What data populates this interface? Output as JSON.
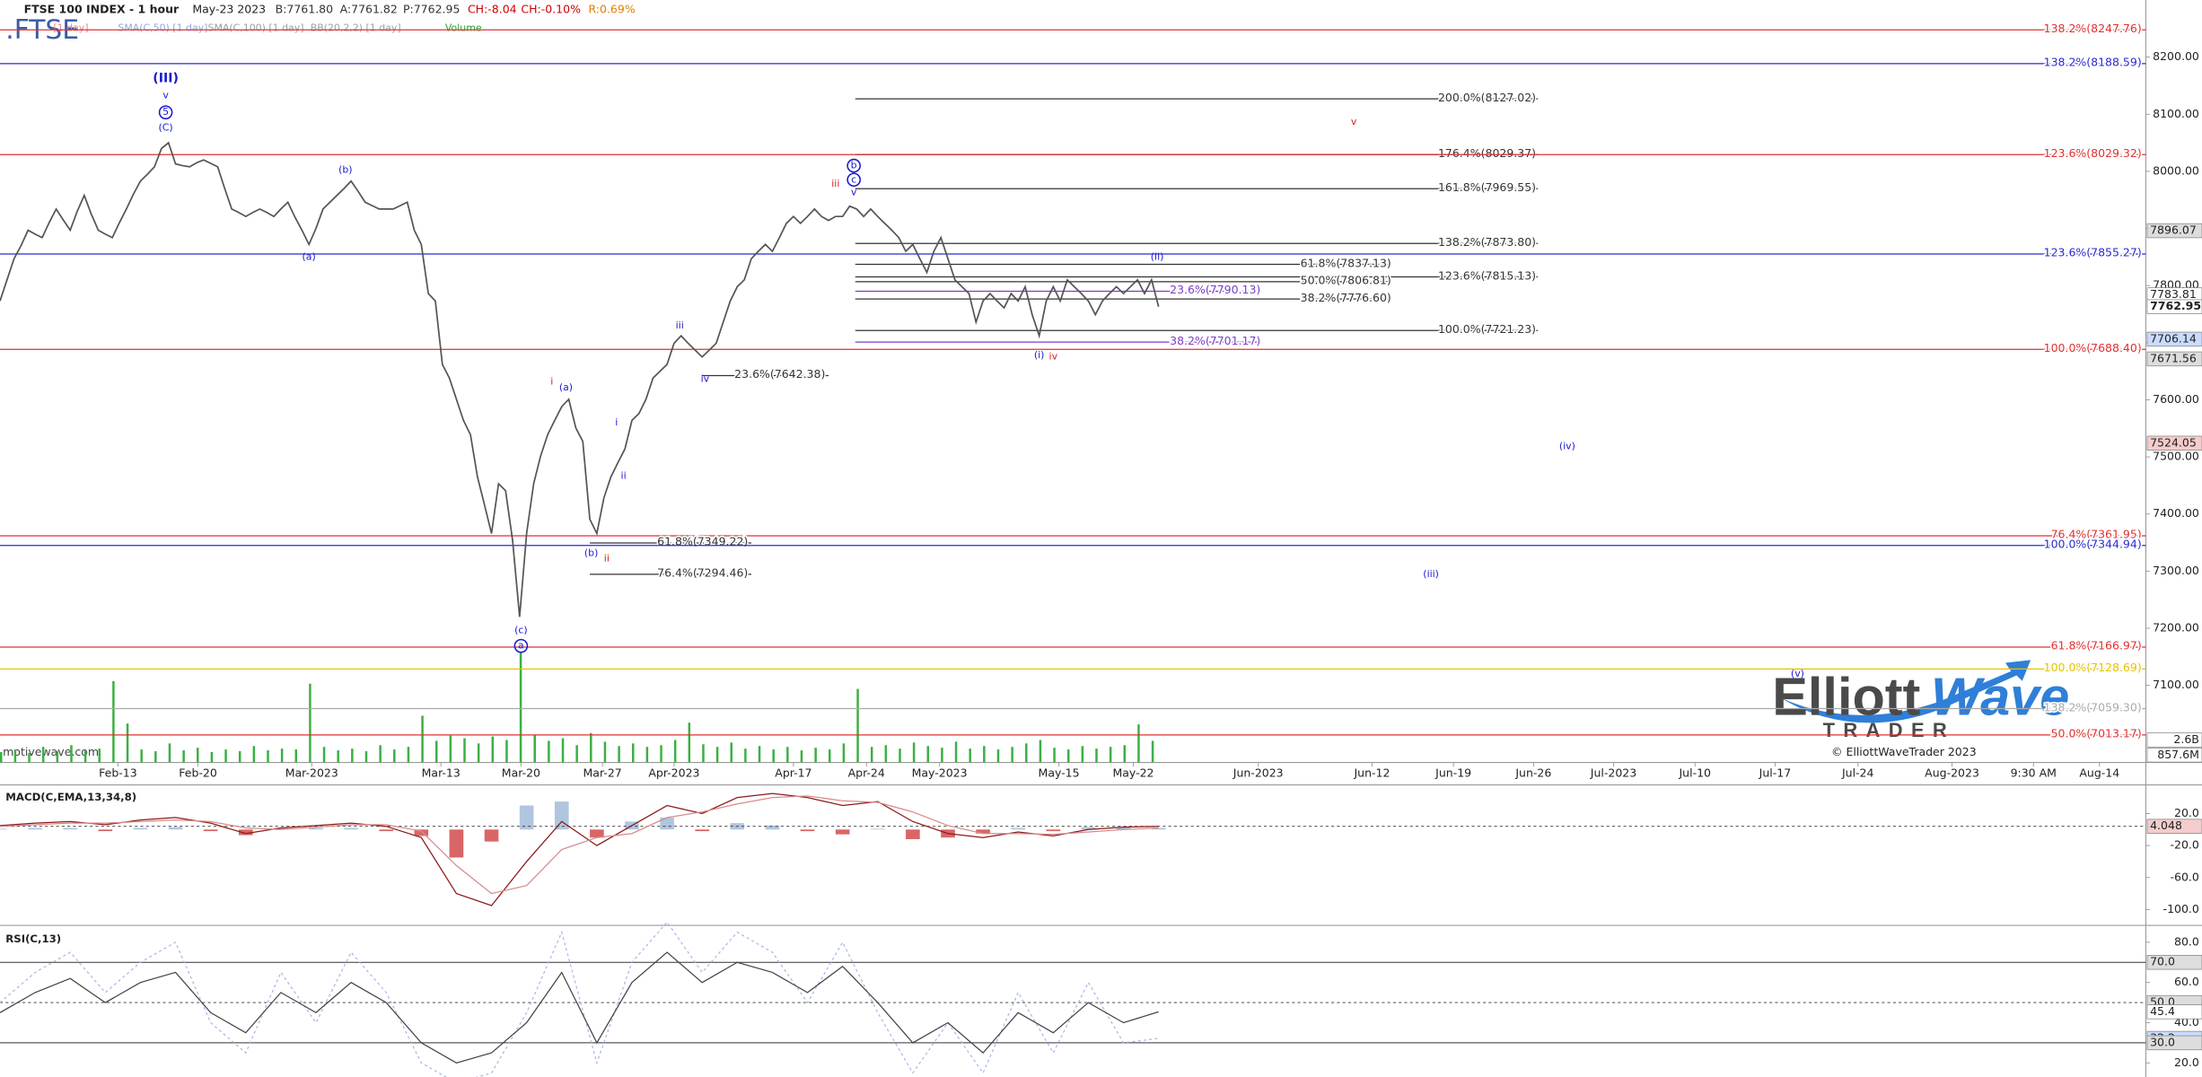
{
  "chart_data": [
    {
      "type": "line",
      "title": "FTSE 100 INDEX - 1 hour",
      "symbol": ".FTSE",
      "date": "May-23 2023",
      "quote": [
        {
          "text": "B:7761.80",
          "color": "#333"
        },
        {
          "text": "A:7761.82",
          "color": "#333"
        },
        {
          "text": "P:7762.95",
          "color": "#333"
        },
        {
          "text": "CH:-8.04",
          "color": "#d00000"
        },
        {
          "text": "CH:-0.10%",
          "color": "#d00000"
        },
        {
          "text": "R:0.69%",
          "color": "#e08000"
        }
      ],
      "overlays": [
        {
          "text": "[1 day]",
          "color": "#e08a8a"
        },
        {
          "text": "SMA(C,50) [1 day]",
          "color": "#8fa8d8"
        },
        {
          "text": "SMA(C,100) [1 day]",
          "color": "#a0a0a0"
        },
        {
          "text": "BB(20,2,2) [1 day]",
          "color": "#a0a0a0"
        },
        {
          "text": "Volume",
          "color": "#2a9d2a"
        }
      ],
      "ylim": [
        6965,
        8300
      ],
      "yticks": [
        {
          "value": 7100,
          "label": "7100.00"
        },
        {
          "value": 7200,
          "label": "7200.00"
        },
        {
          "value": 7300,
          "label": "7300.00"
        },
        {
          "value": 7400,
          "label": "7400.00"
        },
        {
          "value": 7500,
          "label": "7500.00"
        },
        {
          "value": 7600,
          "label": "7600.00"
        },
        {
          "value": 7700,
          "label": "7700.00"
        },
        {
          "value": 7800,
          "label": "7800.00"
        },
        {
          "value": 7900,
          "label": "7900.00"
        },
        {
          "value": 8000,
          "label": "8000.00"
        },
        {
          "value": 8100,
          "label": "8100.00"
        },
        {
          "value": 8200,
          "label": "8200.00"
        }
      ],
      "xticks": [
        "Feb-13",
        "Feb-20",
        "Mar-2023",
        "Mar-13",
        "Mar-20",
        "Mar-27",
        "Apr-2023",
        "Apr-17",
        "Apr-24",
        "May-2023",
        "May-15",
        "May-22",
        "Jun-2023",
        "Jun-12",
        "Jun-19",
        "Jun-26",
        "Jul-2023",
        "Jul-10",
        "Jul-17",
        "Jul-24",
        "Aug-2023",
        "9:30 AM",
        "Aug-14"
      ],
      "series": [
        {
          "color": "#555555",
          "values": [
            7773,
            7810,
            7847,
            7870,
            7897,
            7890,
            7884,
            7910,
            7934,
            7915,
            7897,
            7930,
            7958,
            7925,
            7897,
            7890,
            7884,
            7910,
            7934,
            7960,
            7983,
            7995,
            8008,
            8040,
            8050,
            8013,
            8010,
            8008,
            8015,
            8020,
            8014,
            8008,
            7970,
            7934,
            7928,
            7921,
            7928,
            7934,
            7928,
            7921,
            7934,
            7946,
            7920,
            7897,
            7872,
            7900,
            7934,
            7946,
            7958,
            7970,
            7983,
            7965,
            7946,
            7940,
            7934,
            7934,
            7934,
            7940,
            7946,
            7897,
            7872,
            7786,
            7773,
            7662,
            7638,
            7601,
            7564,
            7539,
            7465,
            7416,
            7366,
            7453,
            7441,
            7354,
            7220,
            7366,
            7453,
            7502,
            7539,
            7564,
            7588,
            7601,
            7551,
            7527,
            7391,
            7366,
            7428,
            7465,
            7490,
            7514,
            7564,
            7576,
            7601,
            7638,
            7650,
            7662,
            7699,
            7712,
            7699,
            7687,
            7675,
            7687,
            7699,
            7736,
            7773,
            7798,
            7810,
            7847,
            7860,
            7872,
            7860,
            7884,
            7909,
            7921,
            7909,
            7921,
            7934,
            7921,
            7914,
            7921,
            7921,
            7939,
            7934,
            7921,
            7934,
            7921,
            7909,
            7897,
            7884,
            7860,
            7872,
            7847,
            7823,
            7860,
            7884,
            7847,
            7810,
            7798,
            7786,
            7736,
            7773,
            7786,
            7773,
            7761,
            7786,
            7773,
            7798,
            7749,
            7712,
            7773,
            7798,
            7773,
            7810,
            7798,
            7786,
            7773,
            7749,
            7773,
            7786,
            7798,
            7786,
            7798,
            7810,
            7786,
            7810,
            7763
          ]
        }
      ],
      "levels": [
        {
          "label": "138.2%(8247.76)",
          "value": 8247.76,
          "color": "#e03030"
        },
        {
          "label": "138.2%(8188.59)",
          "value": 8188.59,
          "color": "#2a2ad0"
        },
        {
          "label": "200.0%(8127.02)",
          "value": 8127.02,
          "color": "#333333"
        },
        {
          "label": "176.4%(8029.37)",
          "value": 8029.37,
          "color": "#333333"
        },
        {
          "label": "123.6%(8029.32)",
          "value": 8029.32,
          "color": "#e03030"
        },
        {
          "label": "161.8%(7969.55)",
          "value": 7969.55,
          "color": "#333333"
        },
        {
          "label": "138.2%(7873.80)",
          "value": 7873.8,
          "color": "#333333"
        },
        {
          "label": "123.6%(7855.27)",
          "value": 7855.27,
          "color": "#2a2ad0"
        },
        {
          "label": "61.8%(7837.13)",
          "value": 7837.13,
          "color": "#333333"
        },
        {
          "label": "123.6%(7815.13)",
          "value": 7815.13,
          "color": "#333333"
        },
        {
          "label": "50.0%(7806.81)",
          "value": 7806.81,
          "color": "#333333"
        },
        {
          "label": "23.6%(7790.13)",
          "value": 7790.13,
          "color": "#7a3ec8"
        },
        {
          "label": "38.2%(7776.60)",
          "value": 7776.6,
          "color": "#333333"
        },
        {
          "label": "100.0%(7721.23)",
          "value": 7721.23,
          "color": "#333333"
        },
        {
          "label": "38.2%(7701.17)",
          "value": 7701.17,
          "color": "#7a3ec8"
        },
        {
          "label": "100.0%(7688.40)",
          "value": 7688.4,
          "color": "#e03030"
        },
        {
          "label": "23.6%(7642.38)",
          "value": 7642.38,
          "color": "#333333"
        },
        {
          "label": "76.4%(7361.95)",
          "value": 7361.95,
          "color": "#e03030"
        },
        {
          "label": "61.8%(7349.22)",
          "value": 7349.22,
          "color": "#333333"
        },
        {
          "label": "100.0%(7344.94)",
          "value": 7344.94,
          "color": "#2a2ad0"
        },
        {
          "label": "76.4%(7294.46)",
          "value": 7294.46,
          "color": "#333333"
        },
        {
          "label": "61.8%(7166.97)",
          "value": 7166.97,
          "color": "#e03030"
        },
        {
          "label": "100.0%(7128.69)",
          "value": 7128.69,
          "color": "#e6c200"
        },
        {
          "label": "138.2%(7059.30)",
          "value": 7059.3,
          "color": "#aaaaaa"
        },
        {
          "label": "50.0%(7013.17)",
          "value": 7013.17,
          "color": "#e03030"
        }
      ],
      "price_markers": [
        {
          "value": 7896.07,
          "color": "#dddddd"
        },
        {
          "value": 7783.81,
          "color": "#ffffff"
        },
        {
          "value": 7762.95,
          "color": "#ffffff"
        },
        {
          "value": 7706.14,
          "color": "#c9dcff"
        },
        {
          "value": 7671.56,
          "color": "#dddddd"
        },
        {
          "value": 7524.05,
          "color": "#f4cccc"
        }
      ],
      "annotations": [
        {
          "text": "(III)",
          "color": "#1a1ad0",
          "circled": false
        },
        {
          "text": "v",
          "color": "#1a1ad0",
          "circled": false
        },
        {
          "text": "5",
          "color": "#1a1ad0",
          "circled": true
        },
        {
          "text": "(C)",
          "color": "#1a1ad0",
          "circled": false
        },
        {
          "text": "(b)",
          "color": "#1a1ad0",
          "circled": false
        },
        {
          "text": "(a)",
          "color": "#1a1ad0",
          "circled": false
        },
        {
          "text": "iii",
          "color": "#d02020",
          "circled": false
        },
        {
          "text": "b",
          "color": "#1a1ad0",
          "circled": true
        },
        {
          "text": "c",
          "color": "#1a1ad0",
          "circled": true
        },
        {
          "text": "v",
          "color": "#1a1ad0",
          "circled": false
        },
        {
          "text": "(ii)",
          "color": "#1a1ad0",
          "circled": false
        },
        {
          "text": "(i)",
          "color": "#1a1ad0",
          "circled": false
        },
        {
          "text": "iv",
          "color": "#d02020",
          "circled": false
        },
        {
          "text": "iii",
          "color": "#1a1ad0",
          "circled": false
        },
        {
          "text": "iv",
          "color": "#1a1ad0",
          "circled": false
        },
        {
          "text": "i",
          "color": "#d02020",
          "circled": false
        },
        {
          "text": "(a)",
          "color": "#1a1ad0",
          "circled": false
        },
        {
          "text": "i",
          "color": "#1a1ad0",
          "circled": false
        },
        {
          "text": "ii",
          "color": "#1a1ad0",
          "circled": false
        },
        {
          "text": "(b)",
          "color": "#1a1ad0",
          "circled": false
        },
        {
          "text": "ii",
          "color": "#d02020",
          "circled": false
        },
        {
          "text": "(c)",
          "color": "#1a1ad0",
          "circled": false
        },
        {
          "text": "a",
          "color": "#1a1ad0",
          "circled": true
        },
        {
          "text": "v",
          "color": "#d02020",
          "circled": false
        },
        {
          "text": "(iv)",
          "color": "#1a1ad0",
          "circled": false
        },
        {
          "text": "(iii)",
          "color": "#1a1ad0",
          "circled": false
        },
        {
          "text": "(v)",
          "color": "#1a1ad0",
          "circled": false
        }
      ],
      "volume": {
        "color": "#3cb043",
        "ylim": [
          0,
          23.2
        ],
        "ticks": [
          {
            "value": 2.6,
            "label": "2.6B"
          },
          {
            "value": 0.8576,
            "label": "857.6M"
          }
        ],
        "values": [
          1.2,
          1.5,
          1.1,
          1.8,
          1.3,
          2.0,
          1.4,
          1.6,
          9.4,
          4.5,
          1.5,
          1.3,
          2.2,
          1.4,
          1.7,
          1.2,
          1.5,
          1.3,
          1.9,
          1.4,
          1.6,
          1.5,
          9.1,
          1.8,
          1.4,
          1.6,
          1.3,
          2.0,
          1.5,
          1.8,
          5.4,
          2.5,
          3.1,
          2.8,
          2.2,
          3.0,
          2.6,
          12.7,
          3.2,
          2.5,
          2.8,
          2.0,
          3.4,
          2.4,
          1.9,
          2.2,
          1.8,
          2.0,
          2.6,
          4.6,
          2.1,
          1.8,
          2.3,
          1.6,
          1.9,
          1.5,
          1.8,
          1.4,
          1.7,
          1.5,
          2.2,
          8.5,
          1.8,
          2.0,
          1.6,
          2.3,
          1.9,
          1.7,
          2.4,
          1.6,
          1.9,
          1.5,
          1.8,
          2.2,
          2.6,
          1.7,
          1.5,
          1.9,
          1.6,
          1.8,
          2.0,
          4.4,
          2.5
        ]
      },
      "footer": {
        "source": "motivewave.com",
        "copyright": "© ElliottWaveTrader 2023"
      },
      "logo": {
        "word1": "Elliott",
        "word2": "Wave",
        "word3": "TRADER"
      }
    },
    {
      "type": "line",
      "title": "MACD(C,EMA,13,34,8)",
      "ylim": [
        -118,
        54
      ],
      "yticks": [
        {
          "value": 20,
          "label": "20.0"
        },
        {
          "value": -20,
          "label": "-20.0"
        },
        {
          "value": -60,
          "label": "-60.0"
        },
        {
          "value": -100,
          "label": "-100.0"
        }
      ],
      "markers": [
        {
          "value": 4.048,
          "color": "#f4cccc",
          "line": "dashed"
        }
      ],
      "series": [
        {
          "color": "#8b1a1a",
          "values": [
            5,
            8,
            10,
            6,
            12,
            15,
            8,
            -5,
            2,
            5,
            8,
            4,
            -10,
            -80,
            -95,
            -40,
            10,
            -20,
            5,
            30,
            20,
            40,
            45,
            40,
            30,
            35,
            10,
            -5,
            -10,
            -3,
            -8,
            0,
            3,
            4
          ]
        },
        {
          "color": "#d88a8a",
          "values": [
            4,
            6,
            8,
            8,
            10,
            12,
            10,
            2,
            0,
            3,
            6,
            6,
            -2,
            -45,
            -80,
            -70,
            -25,
            -10,
            -5,
            15,
            22,
            32,
            40,
            42,
            36,
            34,
            22,
            5,
            -5,
            -5,
            -6,
            -3,
            0,
            2
          ]
        }
      ],
      "histogram": {
        "up_color": "#9cb8d8",
        "down_color": "#d04040",
        "values": [
          1,
          2,
          2,
          -2,
          2,
          3,
          -2,
          -7,
          2,
          2,
          2,
          -2,
          -8,
          -35,
          -15,
          30,
          35,
          -10,
          10,
          15,
          -2,
          8,
          5,
          -2,
          -6,
          1,
          -12,
          -10,
          -5,
          2,
          -2,
          3,
          3,
          2
        ]
      }
    },
    {
      "type": "line",
      "title": "RSI(C,13)",
      "ylim": [
        13,
        87
      ],
      "yticks": [
        {
          "value": 80,
          "label": "80.0"
        },
        {
          "value": 60,
          "label": "60.0"
        },
        {
          "value": 40,
          "label": "40.0"
        },
        {
          "value": 20,
          "label": "20.0"
        }
      ],
      "markers": [
        {
          "value": 70,
          "label": "70.0",
          "color": "#dddddd",
          "line": "solid"
        },
        {
          "value": 50,
          "label": "50.0",
          "color": "#dddddd",
          "line": "dashed"
        },
        {
          "value": 45.4,
          "color": "#ffffff",
          "line": "none"
        },
        {
          "value": 32.2,
          "color": "#c9dcff",
          "line": "none"
        },
        {
          "value": 30,
          "label": "30.0",
          "color": "#dddddd",
          "line": "solid"
        }
      ],
      "series": [
        {
          "color": "#a9b8e8",
          "dash": true,
          "values": [
            50,
            65,
            75,
            55,
            70,
            80,
            40,
            25,
            65,
            40,
            75,
            55,
            20,
            10,
            15,
            45,
            85,
            20,
            70,
            90,
            65,
            85,
            75,
            50,
            80,
            45,
            15,
            40,
            15,
            55,
            25,
            60,
            30,
            32.2
          ]
        },
        {
          "color": "#444444",
          "dash": false,
          "values": [
            45,
            55,
            62,
            50,
            60,
            65,
            45,
            35,
            55,
            45,
            60,
            50,
            30,
            20,
            25,
            40,
            65,
            30,
            60,
            75,
            60,
            70,
            65,
            55,
            68,
            50,
            30,
            40,
            25,
            45,
            35,
            50,
            40,
            45.4
          ]
        }
      ]
    }
  ]
}
